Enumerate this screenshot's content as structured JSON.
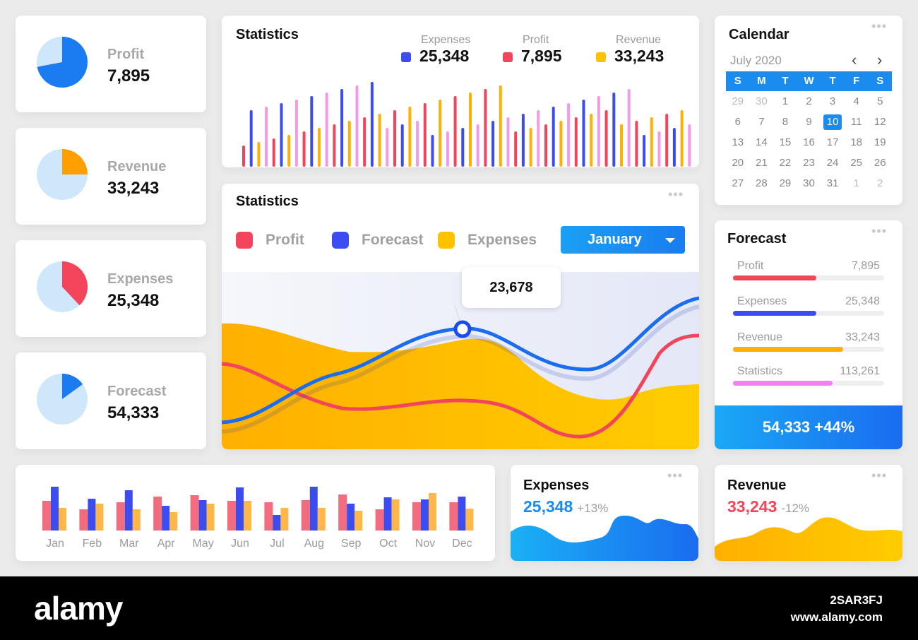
{
  "kpis": [
    {
      "label": "Profit",
      "value": "7,895",
      "color": "#1a7cf0",
      "fraction": 0.72
    },
    {
      "label": "Revenue",
      "value": "33,243",
      "color": "#ffa000",
      "fraction": 0.25
    },
    {
      "label": "Expenses",
      "value": "25,348",
      "color": "#f2455b",
      "fraction": 0.38
    },
    {
      "label": "Forecast",
      "value": "54,333",
      "color": "#1a7cf0",
      "fraction": 0.15
    }
  ],
  "top_stats": {
    "title": "Statistics",
    "legend": [
      {
        "label": "Expenses",
        "value": "25,348",
        "color": "#3b4cf0"
      },
      {
        "label": "Profit",
        "value": "7,895",
        "color": "#f2455b"
      },
      {
        "label": "Revenue",
        "value": "33,243",
        "color": "#ffc200"
      }
    ]
  },
  "main_stats": {
    "title": "Statistics",
    "legend": [
      {
        "label": "Profit",
        "color": "#f2455b"
      },
      {
        "label": "Forecast",
        "color": "#3b4cf0"
      },
      {
        "label": "Expenses",
        "color": "#ffc200"
      }
    ],
    "dropdown": "January",
    "tooltip": "23,678"
  },
  "calendar": {
    "title": "Calendar",
    "month": "July 2020",
    "prev": "‹",
    "next": "›",
    "weekdays": [
      "S",
      "M",
      "T",
      "W",
      "T",
      "F",
      "S"
    ],
    "weeks": [
      [
        "29",
        "30",
        "1",
        "2",
        "3",
        "4",
        "5"
      ],
      [
        "6",
        "7",
        "8",
        "9",
        "10",
        "11",
        "12"
      ],
      [
        "13",
        "14",
        "15",
        "16",
        "17",
        "18",
        "19"
      ],
      [
        "20",
        "21",
        "22",
        "23",
        "24",
        "25",
        "26"
      ],
      [
        "27",
        "28",
        "29",
        "30",
        "31",
        "1",
        "2"
      ]
    ],
    "selected": "10",
    "header_color": "#1a8cf0"
  },
  "forecast": {
    "title": "Forecast",
    "rows": [
      {
        "label": "Profit",
        "value": "7,895",
        "color": "#f2455b",
        "fraction": 0.55
      },
      {
        "label": "Expenses",
        "value": "25,348",
        "color": "#3b4cf0",
        "fraction": 0.55
      },
      {
        "label": "Revenue",
        "value": "33,243",
        "color": "#ffb000",
        "fraction": 0.73
      },
      {
        "label": "Statistics",
        "value": "113,261",
        "color": "#ee82ee",
        "fraction": 0.66
      }
    ],
    "footer": "54,333 +44%"
  },
  "monthly": {
    "months": [
      "Jan",
      "Feb",
      "Mar",
      "Apr",
      "May",
      "Jun",
      "Jul",
      "Aug",
      "Sep",
      "Oct",
      "Nov",
      "Dec"
    ]
  },
  "mini_expenses": {
    "title": "Expenses",
    "value": "25,348",
    "pct": "+13%",
    "color": "#1a8cf0"
  },
  "mini_revenue": {
    "title": "Revenue",
    "value": "33,243",
    "pct": "-12%",
    "color": "#f2455b"
  },
  "watermark": {
    "brand": "alamy",
    "id": "2SAR3FJ",
    "url": "www.alamy.com"
  }
}
